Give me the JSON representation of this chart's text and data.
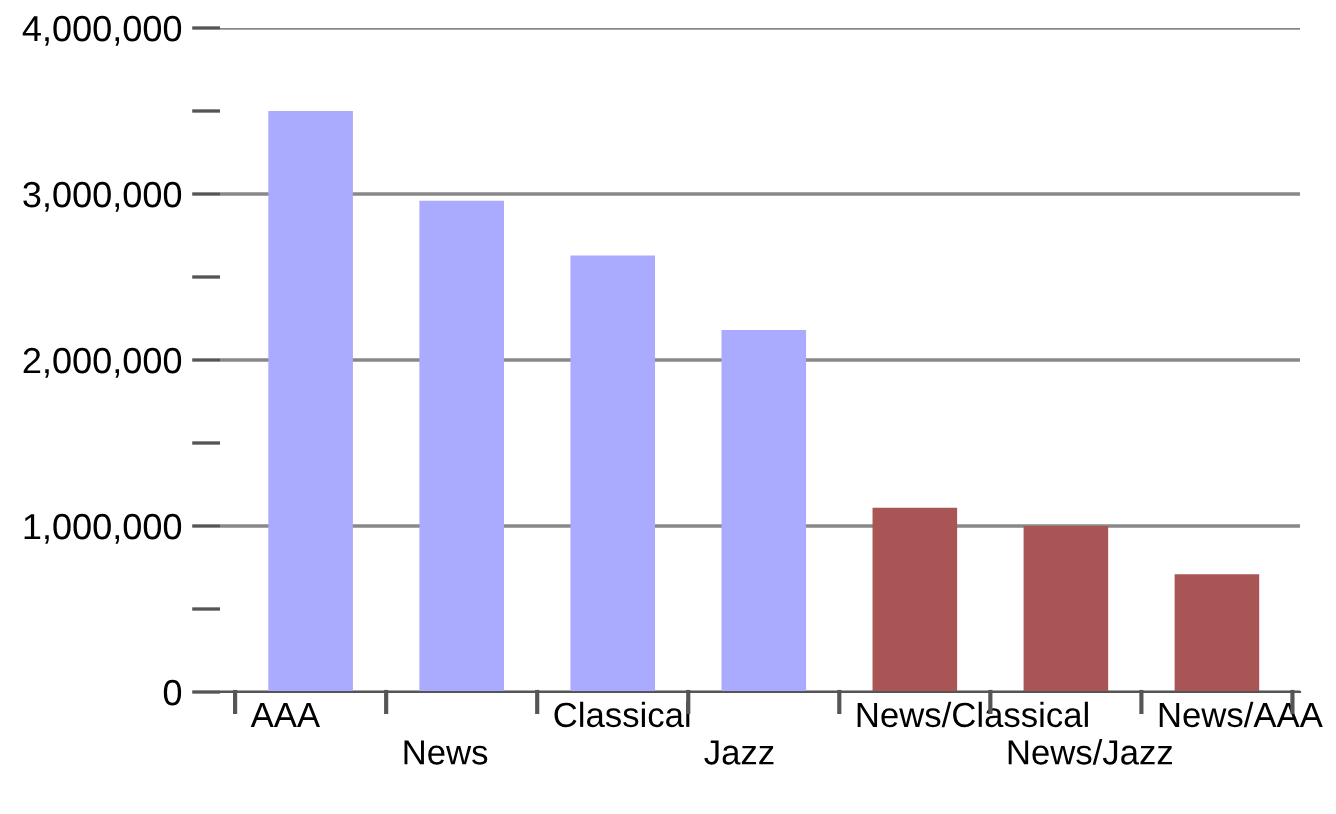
{
  "chart_data": {
    "type": "bar",
    "categories": [
      "AAA",
      "News",
      "Classical",
      "Jazz",
      "News/Classical",
      "News/Jazz",
      "News/AAA"
    ],
    "values": [
      3500000,
      2960000,
      2630000,
      2180000,
      1110000,
      1000000,
      710000
    ],
    "colors": [
      "#aaaaff",
      "#aaaaff",
      "#aaaaff",
      "#aaaaff",
      "#aa5555",
      "#aa5555",
      "#aa5555"
    ],
    "ylim": [
      0,
      4000000
    ],
    "yticks": [
      {
        "value": 0,
        "label": "0"
      },
      {
        "value": 500000,
        "label": null
      },
      {
        "value": 1000000,
        "label": "1,000,000"
      },
      {
        "value": 1500000,
        "label": null
      },
      {
        "value": 2000000,
        "label": "2,000,000"
      },
      {
        "value": 2500000,
        "label": null
      },
      {
        "value": 3000000,
        "label": "3,000,000"
      },
      {
        "value": 3500000,
        "label": null
      },
      {
        "value": 4000000,
        "label": "4,000,000"
      }
    ],
    "grid": "y"
  }
}
